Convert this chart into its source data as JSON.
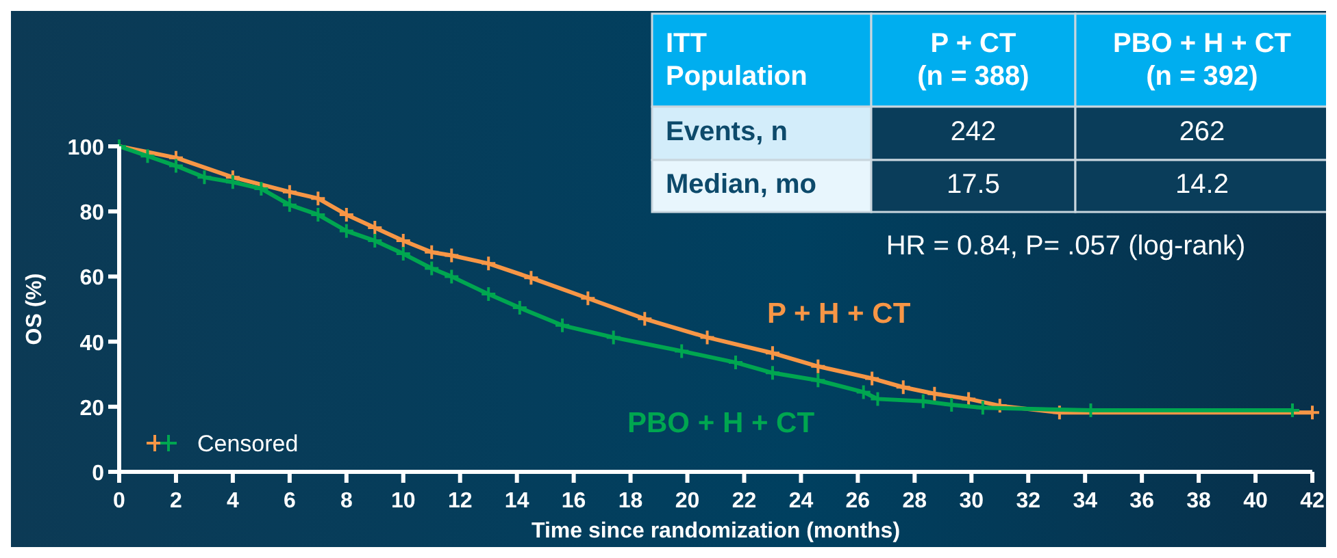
{
  "chart_data": {
    "type": "line",
    "xlabel": "Time since randomization (months)",
    "ylabel": "OS (%)",
    "xlim": [
      0,
      42
    ],
    "xticks": [
      0,
      2,
      4,
      6,
      8,
      10,
      12,
      14,
      16,
      18,
      20,
      22,
      24,
      26,
      28,
      30,
      32,
      34,
      36,
      38,
      40,
      42
    ],
    "ylim": [
      0,
      100
    ],
    "yticks": [
      0,
      20,
      40,
      60,
      80,
      100
    ],
    "marker": "cross",
    "line_style": "solid",
    "grid": false,
    "annotations": [
      "ITT\nPopulation",
      "P + CT\n(n = 388)",
      "PBO + H + CT\n(n = 392)",
      "Events, n",
      "242",
      "262",
      "Median, mo",
      "17.5",
      "14.2",
      "HR = 0.84, P= .057 (log-rank)",
      "Censored"
    ],
    "series": [
      {
        "name": "P + H + CT",
        "color": "#f79646",
        "x": [
          0,
          2,
          4,
          6,
          7,
          8,
          9,
          10,
          11,
          11.7,
          13,
          14.5,
          16.5,
          18.5,
          20.7,
          23,
          24.6,
          26.5,
          27.6,
          28.7,
          29.9,
          31,
          33.1,
          42
        ],
        "values": [
          100,
          96.5,
          90.5,
          86,
          84,
          79,
          75,
          71,
          67.5,
          66.5,
          64,
          59.6,
          53.3,
          47,
          41.3,
          36.5,
          32.4,
          28.7,
          26,
          24,
          22.4,
          20.3,
          18.2,
          18.2
        ]
      },
      {
        "name": "PBO + H + CT",
        "color": "#00a650",
        "x": [
          0,
          1,
          2,
          3,
          4,
          5,
          6,
          7,
          8,
          9,
          10,
          11,
          11.7,
          13,
          14.1,
          15.6,
          17.4,
          19.8,
          21.7,
          23,
          24.6,
          26.2,
          26.7,
          28.3,
          29.3,
          30.4,
          34.2,
          41.3
        ],
        "values": [
          100,
          97,
          94,
          90.5,
          89,
          87,
          82,
          79,
          74,
          71,
          67,
          62.5,
          60,
          54.6,
          50.4,
          45,
          41.3,
          37.1,
          33.6,
          30.4,
          28.1,
          24.5,
          22.4,
          21.7,
          20.6,
          19.7,
          18.9,
          18.9
        ]
      }
    ]
  }
}
